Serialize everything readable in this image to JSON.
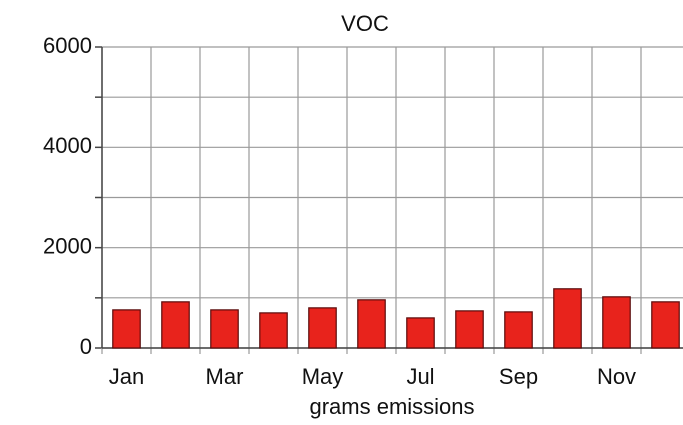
{
  "chart_data": {
    "type": "bar",
    "title": "VOC",
    "x_label": "grams emissions",
    "categories": [
      "Jan",
      null,
      "Mar",
      null,
      "May",
      null,
      "Jul",
      null,
      "Sep",
      null,
      "Nov",
      null
    ],
    "values": [
      760,
      920,
      760,
      700,
      800,
      960,
      600,
      740,
      720,
      1180,
      1020,
      920
    ],
    "color": "#e8231c",
    "ylim": [
      0,
      6000
    ],
    "yticks": [
      0,
      2000,
      4000,
      6000
    ],
    "yminorticks": [
      1000,
      3000,
      5000
    ],
    "grid": true
  }
}
